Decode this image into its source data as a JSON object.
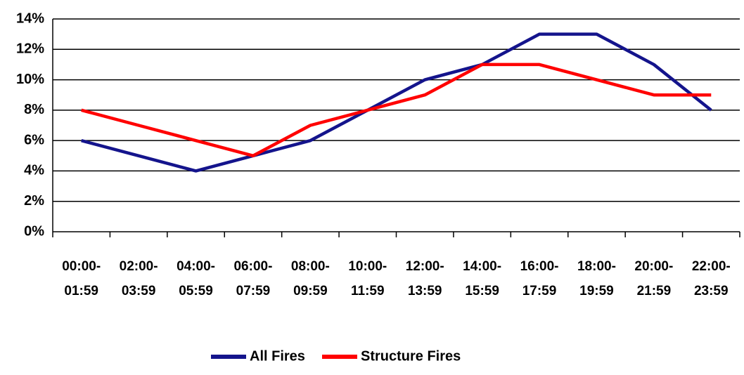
{
  "chart_data": {
    "type": "line",
    "categories": [
      "00:00-01:59",
      "02:00-03:59",
      "04:00-05:59",
      "06:00-07:59",
      "08:00-09:59",
      "10:00-11:59",
      "12:00-13:59",
      "14:00-15:59",
      "16:00-17:59",
      "18:00-19:59",
      "20:00-21:59",
      "22:00-23:59"
    ],
    "series": [
      {
        "name": "All Fires",
        "color": "#14148c",
        "values": [
          6,
          5,
          4,
          5,
          6,
          8,
          10,
          11,
          13,
          13,
          11,
          8
        ]
      },
      {
        "name": "Structure Fires",
        "color": "#ff0000",
        "values": [
          8,
          7,
          6,
          5,
          7,
          8,
          9,
          11,
          11,
          10,
          9,
          9
        ]
      }
    ],
    "ylim": [
      0,
      14
    ],
    "yticks": [
      {
        "value": 0,
        "label": "0%"
      },
      {
        "value": 2,
        "label": "2%"
      },
      {
        "value": 4,
        "label": "4%"
      },
      {
        "value": 6,
        "label": "6%"
      },
      {
        "value": 8,
        "label": "8%"
      },
      {
        "value": 10,
        "label": "10%"
      },
      {
        "value": 12,
        "label": "12%"
      },
      {
        "value": 14,
        "label": "14%"
      }
    ],
    "grid": true,
    "legend": "bottom"
  }
}
